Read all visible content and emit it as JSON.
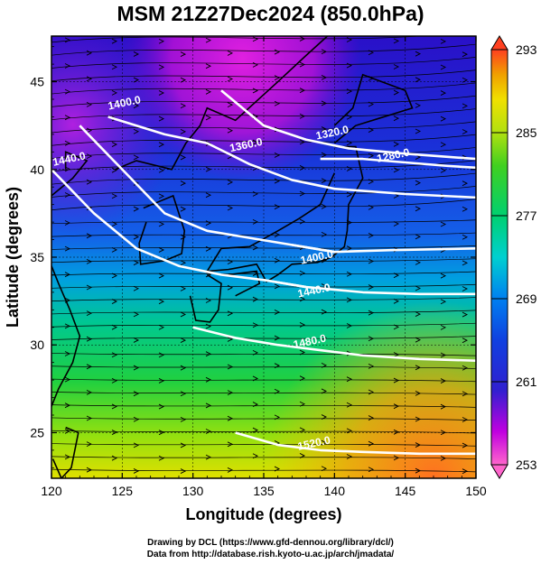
{
  "title": "MSM 21Z27Dec2024 (850.0hPa)",
  "credits": {
    "line1": "Drawing by DCL (https://www.gfd-dennou.org/library/dcl/)",
    "line2": "Data from http://database.rish.kyoto-u.ac.jp/arch/jmadata/"
  },
  "chart_data": {
    "type": "heatmap",
    "variable_description": "850 hPa temperature (K) shading, geopotential height contours (m), wind streamlines",
    "xlabel": "Longitude (degrees)",
    "ylabel": "Latitude  (degrees)",
    "xlim": [
      120,
      150
    ],
    "ylim": [
      22.4,
      47.6
    ],
    "x_ticks": [
      120,
      125,
      130,
      135,
      140,
      145,
      150
    ],
    "y_ticks": [
      25,
      30,
      35,
      40,
      45
    ],
    "grid": true,
    "colorbar": {
      "min": 253,
      "max": 293,
      "ticks": [
        253,
        261,
        269,
        277,
        285,
        293
      ],
      "colors": [
        "#ff66cc",
        "#a000e0",
        "#2020d0",
        "#1060f0",
        "#00c0e0",
        "#00d070",
        "#40d020",
        "#b0e010",
        "#f0e000",
        "#f0a000",
        "#ff5020"
      ]
    },
    "contours": [
      {
        "label": "1280.0",
        "points": [
          [
            139,
            40.6
          ],
          [
            142,
            40.6
          ],
          [
            145,
            40.4
          ],
          [
            148,
            40.2
          ],
          [
            150,
            40.1
          ]
        ],
        "label_at": [
          144.2,
          40.6
        ]
      },
      {
        "label": "1320.0",
        "points": [
          [
            132,
            44.5
          ],
          [
            135,
            42.5
          ],
          [
            138,
            41.7
          ],
          [
            141,
            41.2
          ],
          [
            145,
            40.9
          ],
          [
            150,
            40.6
          ]
        ],
        "label_at": [
          139.9,
          41.9
        ]
      },
      {
        "label": "1360.0",
        "points": [
          [
            124,
            43
          ],
          [
            128,
            42
          ],
          [
            131,
            41.5
          ],
          [
            134,
            40.3
          ],
          [
            137,
            39.4
          ],
          [
            140,
            38.9
          ],
          [
            145,
            38.6
          ],
          [
            150,
            38.4
          ]
        ],
        "label_at": [
          133.8,
          41.2
        ]
      },
      {
        "label": "1400.0",
        "points": [
          [
            122,
            42.5
          ],
          [
            125,
            40
          ],
          [
            128,
            37.5
          ],
          [
            131,
            36.5
          ],
          [
            134,
            36.1
          ],
          [
            137,
            35.7
          ],
          [
            140,
            35.3
          ],
          [
            144,
            35.4
          ],
          [
            150,
            35.5
          ]
        ],
        "label_at": [
          125.2,
          43.6
        ]
      },
      {
        "label": "1400.0",
        "points": [
          [
            137,
            35.7
          ],
          [
            140,
            35.3
          ]
        ],
        "label_at": [
          138.8,
          34.8
        ]
      },
      {
        "label": "1440.0",
        "points": [
          [
            120,
            40
          ],
          [
            123,
            37.5
          ],
          [
            126,
            35.5
          ],
          [
            129,
            34.5
          ],
          [
            132,
            34
          ],
          [
            135,
            33.7
          ],
          [
            138,
            33.3
          ],
          [
            142,
            33
          ],
          [
            146,
            32.9
          ],
          [
            150,
            32.9
          ]
        ],
        "label_at": [
          121.3,
          40.4
        ]
      },
      {
        "label": "1440.0",
        "points": [
          [
            135,
            33.7
          ],
          [
            138,
            33.3
          ]
        ],
        "label_at": [
          138.6,
          32.9
        ]
      },
      {
        "label": "1480.0",
        "points": [
          [
            130,
            31
          ],
          [
            133,
            30.4
          ],
          [
            136,
            30
          ],
          [
            139,
            29.7
          ],
          [
            142,
            29.4
          ],
          [
            146,
            29.2
          ],
          [
            150,
            29.1
          ]
        ],
        "label_at": [
          138.3,
          30.0
        ]
      },
      {
        "label": "1520.0",
        "points": [
          [
            133,
            25
          ],
          [
            136,
            24.3
          ],
          [
            139,
            24
          ],
          [
            142,
            23.9
          ],
          [
            146,
            23.8
          ],
          [
            150,
            23.8
          ]
        ],
        "label_at": [
          138.6,
          24.2
        ]
      }
    ]
  }
}
